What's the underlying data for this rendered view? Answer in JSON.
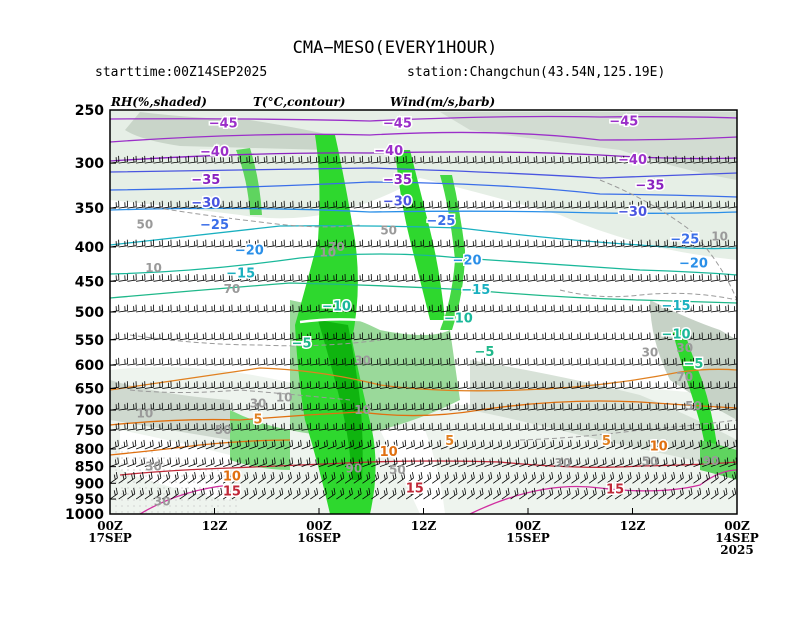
{
  "chart_data": {
    "type": "time-height cross-section",
    "title": "CMA−MESO(EVERY1HOUR)",
    "starttime": "starttime:00Z14SEP2025",
    "station": "station:Changchun(43.54N,125.19E)",
    "legend": {
      "rh": "RH(%,shaded)",
      "temp": "T(°C,contour)",
      "wind": "Wind(m/s,barb)"
    },
    "y_axis": {
      "scale": "log-pressure",
      "reversed": true,
      "range": [
        1000,
        250
      ],
      "ticks": [
        {
          "value": 250,
          "label": "250"
        },
        {
          "value": 300,
          "label": "300"
        },
        {
          "value": 350,
          "label": "350"
        },
        {
          "value": 400,
          "label": "400"
        },
        {
          "value": 450,
          "label": "450"
        },
        {
          "value": 500,
          "label": "500"
        },
        {
          "value": 550,
          "label": "550"
        },
        {
          "value": 600,
          "label": "600"
        },
        {
          "value": 650,
          "label": "650"
        },
        {
          "value": 700,
          "label": "700"
        },
        {
          "value": 750,
          "label": "750"
        },
        {
          "value": 800,
          "label": "800"
        },
        {
          "value": 850,
          "label": "850"
        },
        {
          "value": 900,
          "label": "900"
        },
        {
          "value": 950,
          "label": "950"
        },
        {
          "value": 1000,
          "label": "1000"
        }
      ]
    },
    "x_axis": {
      "direction": "time decreasing to the right",
      "range_hours": [
        72,
        0
      ],
      "ticks": [
        {
          "hours": 72,
          "line1": "00Z",
          "line2": "17SEP",
          "line3": ""
        },
        {
          "hours": 60,
          "line1": "12Z",
          "line2": "",
          "line3": ""
        },
        {
          "hours": 48,
          "line1": "00Z",
          "line2": "16SEP",
          "line3": ""
        },
        {
          "hours": 36,
          "line1": "12Z",
          "line2": "",
          "line3": ""
        },
        {
          "hours": 24,
          "line1": "00Z",
          "line2": "15SEP",
          "line3": ""
        },
        {
          "hours": 12,
          "line1": "12Z",
          "line2": "",
          "line3": ""
        },
        {
          "hours": 0,
          "line1": "00Z",
          "line2": "14SEP",
          "line3": "2025"
        }
      ]
    },
    "temperature_labels": [
      {
        "text": "−45",
        "hours": 59,
        "p": 262,
        "color": "#9b2fc9"
      },
      {
        "text": "−45",
        "hours": 39,
        "p": 262,
        "color": "#9b2fc9"
      },
      {
        "text": "−45",
        "hours": 13,
        "p": 260,
        "color": "#9b2fc9"
      },
      {
        "text": "−40",
        "hours": 60,
        "p": 289,
        "color": "#9b2fc9"
      },
      {
        "text": "−40",
        "hours": 40,
        "p": 288,
        "color": "#9b2fc9"
      },
      {
        "text": "−40",
        "hours": 12,
        "p": 297,
        "color": "#9b2fc9"
      },
      {
        "text": "−35",
        "hours": 61,
        "p": 318,
        "color": "#8a22c0"
      },
      {
        "text": "−35",
        "hours": 39,
        "p": 318,
        "color": "#8a22c0"
      },
      {
        "text": "−35",
        "hours": 10,
        "p": 324,
        "color": "#8a22c0"
      },
      {
        "text": "−30",
        "hours": 61,
        "p": 344,
        "color": "#4a55e0"
      },
      {
        "text": "−30",
        "hours": 39,
        "p": 342,
        "color": "#4a55e0"
      },
      {
        "text": "−30",
        "hours": 12,
        "p": 355,
        "color": "#4a55e0"
      },
      {
        "text": "−25",
        "hours": 60,
        "p": 371,
        "color": "#3a6ee8"
      },
      {
        "text": "−25",
        "hours": 34,
        "p": 366,
        "color": "#3a6ee8"
      },
      {
        "text": "−25",
        "hours": 6,
        "p": 390,
        "color": "#3a6ee8"
      },
      {
        "text": "−20",
        "hours": 56,
        "p": 405,
        "color": "#2a8fe8"
      },
      {
        "text": "−20",
        "hours": 31,
        "p": 419,
        "color": "#2a8fe8"
      },
      {
        "text": "−20",
        "hours": 5,
        "p": 423,
        "color": "#2a8fe8"
      },
      {
        "text": "−15",
        "hours": 57,
        "p": 438,
        "color": "#1ab0c0"
      },
      {
        "text": "−15",
        "hours": 30,
        "p": 464,
        "color": "#1ab0c0"
      },
      {
        "text": "−15",
        "hours": 7,
        "p": 490,
        "color": "#1ab0c0"
      },
      {
        "text": "−10",
        "hours": 46,
        "p": 491,
        "color": "#1ab89a"
      },
      {
        "text": "−10",
        "hours": 32,
        "p": 511,
        "color": "#1ab89a"
      },
      {
        "text": "−10",
        "hours": 7,
        "p": 540,
        "color": "#1ab89a"
      },
      {
        "text": "−5",
        "hours": 50,
        "p": 557,
        "color": "#1fb88a"
      },
      {
        "text": "−5",
        "hours": 29,
        "p": 574,
        "color": "#1fb88a"
      },
      {
        "text": "−5",
        "hours": 5,
        "p": 598,
        "color": "#1fb88a"
      },
      {
        "text": "5",
        "hours": 55,
        "p": 723,
        "color": "#e08020"
      },
      {
        "text": "5",
        "hours": 33,
        "p": 778,
        "color": "#e08020"
      },
      {
        "text": "5",
        "hours": 15,
        "p": 778,
        "color": "#e08020"
      },
      {
        "text": "10",
        "hours": 40,
        "p": 808,
        "color": "#e07010"
      },
      {
        "text": "10",
        "hours": 9,
        "p": 793,
        "color": "#e07010"
      },
      {
        "text": "10",
        "hours": 58,
        "p": 880,
        "color": "#e07010"
      },
      {
        "text": "15",
        "hours": 58,
        "p": 925,
        "color": "#c02838"
      },
      {
        "text": "15",
        "hours": 37,
        "p": 916,
        "color": "#c02838"
      },
      {
        "text": "15",
        "hours": 14,
        "p": 920,
        "color": "#c02838"
      }
    ],
    "rh_labels": [
      {
        "text": "50",
        "hours": 68,
        "p": 370
      },
      {
        "text": "10",
        "hours": 67,
        "p": 430
      },
      {
        "text": "10",
        "hours": 47,
        "p": 408
      },
      {
        "text": "50",
        "hours": 40,
        "p": 378
      },
      {
        "text": "70",
        "hours": 46,
        "p": 400
      },
      {
        "text": "70",
        "hours": 58,
        "p": 462
      },
      {
        "text": "10",
        "hours": 2,
        "p": 386
      },
      {
        "text": "10",
        "hours": 52,
        "p": 670
      },
      {
        "text": "30",
        "hours": 55,
        "p": 685
      },
      {
        "text": "10",
        "hours": 68,
        "p": 708
      },
      {
        "text": "50",
        "hours": 59,
        "p": 750
      },
      {
        "text": "30",
        "hours": 43,
        "p": 591
      },
      {
        "text": "10",
        "hours": 43,
        "p": 700
      },
      {
        "text": "30",
        "hours": 10,
        "p": 575
      },
      {
        "text": "30",
        "hours": 6,
        "p": 566
      },
      {
        "text": "30",
        "hours": 20,
        "p": 840
      },
      {
        "text": "50",
        "hours": 10,
        "p": 835
      },
      {
        "text": "90",
        "hours": 3,
        "p": 833
      },
      {
        "text": "50",
        "hours": 5,
        "p": 690
      },
      {
        "text": "70",
        "hours": 6,
        "p": 625
      },
      {
        "text": "30",
        "hours": 67,
        "p": 850
      },
      {
        "text": "30",
        "hours": 66,
        "p": 958
      },
      {
        "text": "90",
        "hours": 44,
        "p": 856
      },
      {
        "text": "50",
        "hours": 39,
        "p": 860
      }
    ]
  }
}
